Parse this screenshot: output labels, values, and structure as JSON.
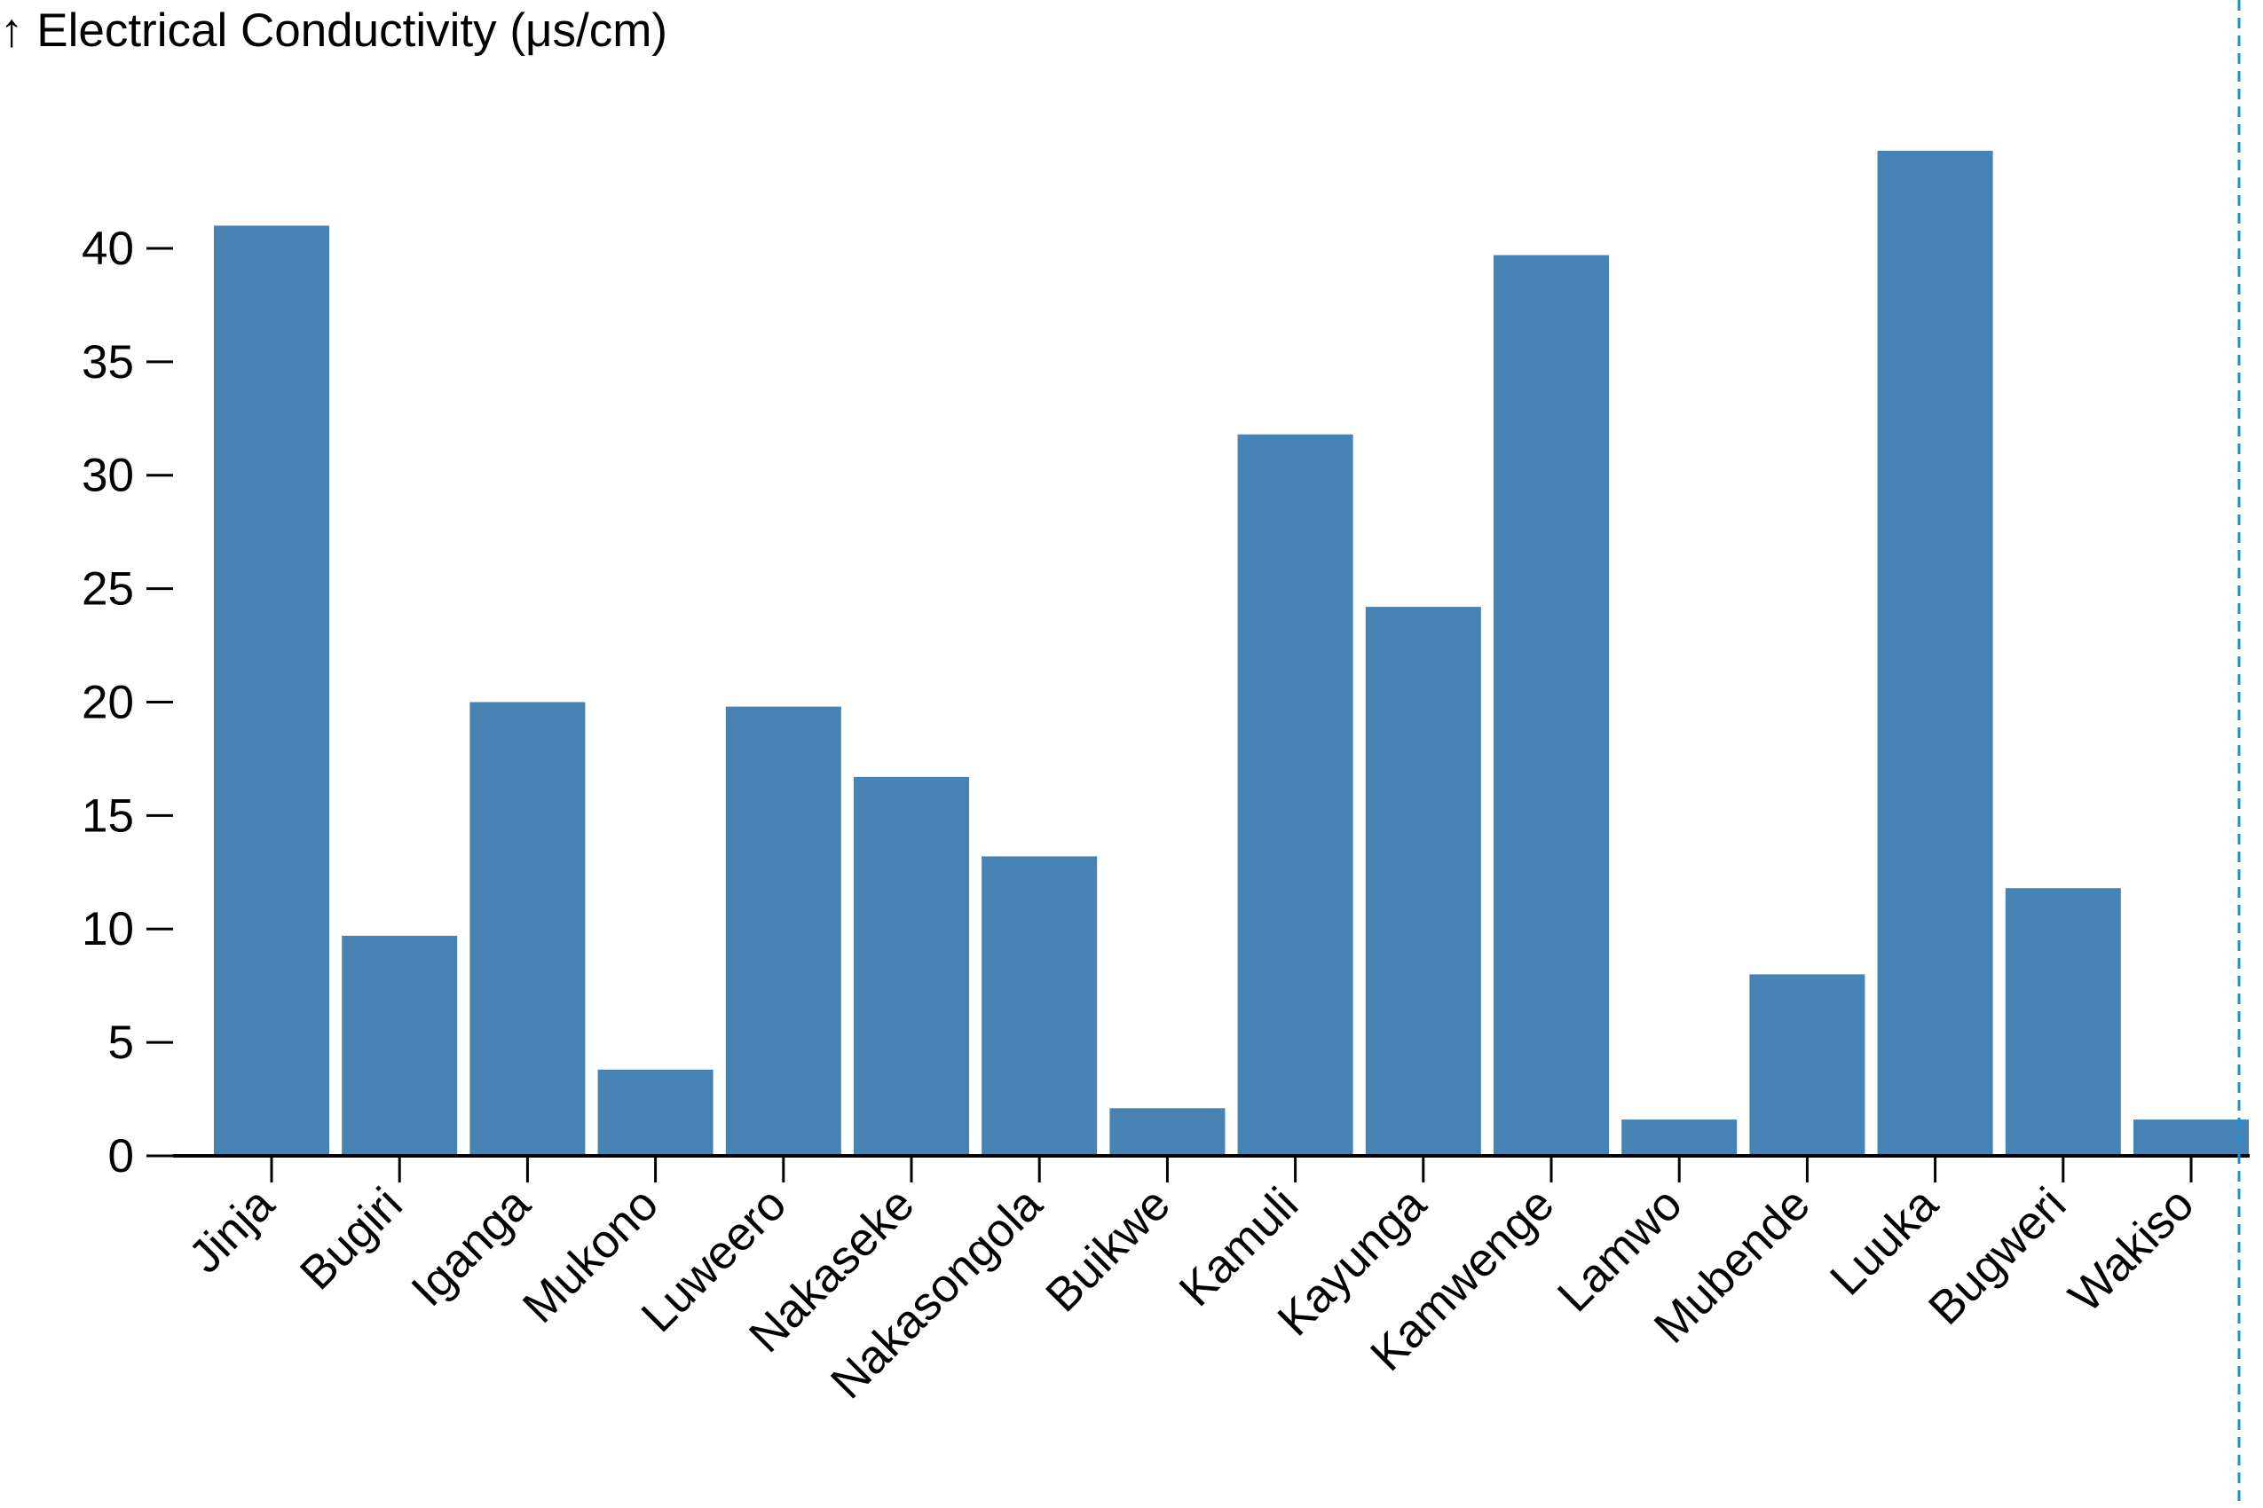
{
  "chart_data": {
    "type": "bar",
    "title": "",
    "xlabel": "",
    "ylabel": "↑ Electrical Conductivity (μs/cm)",
    "categories": [
      "Jinja",
      "Bugiri",
      "Iganga",
      "Mukono",
      "Luweero",
      "Nakaseke",
      "Nakasongola",
      "Buikwe",
      "Kamuli",
      "Kayunga",
      "Kamwenge",
      "Lamwo",
      "Mubende",
      "Luuka",
      "Bugweri",
      "Wakiso"
    ],
    "values": [
      41.0,
      9.7,
      20.0,
      3.8,
      19.8,
      16.7,
      13.2,
      2.1,
      31.8,
      24.2,
      39.7,
      1.6,
      8.0,
      44.3,
      11.8,
      1.6
    ],
    "yticks": [
      "0",
      "5",
      "10",
      "15",
      "20",
      "25",
      "30",
      "35",
      "40"
    ],
    "ylim": [
      0,
      44.3
    ],
    "grid": false,
    "legend": "none",
    "bar_color": "#4682b4",
    "reference_line_color": "#1f8fd0"
  }
}
